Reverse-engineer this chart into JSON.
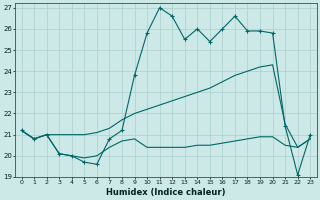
{
  "xlabel": "Humidex (Indice chaleur)",
  "xlim": [
    -0.5,
    23.5
  ],
  "ylim": [
    19,
    27.2
  ],
  "yticks": [
    19,
    20,
    21,
    22,
    23,
    24,
    25,
    26,
    27
  ],
  "xticks": [
    0,
    1,
    2,
    3,
    4,
    5,
    6,
    7,
    8,
    9,
    10,
    11,
    12,
    13,
    14,
    15,
    16,
    17,
    18,
    19,
    20,
    21,
    22,
    23
  ],
  "background_color": "#cce9e8",
  "grid_color": "#aacfce",
  "line_color": "#006666",
  "line1_x": [
    0,
    1,
    2,
    3,
    4,
    5,
    6,
    7,
    8,
    9,
    10,
    11,
    12,
    13,
    14,
    15,
    16,
    17,
    18,
    19,
    20,
    21,
    22,
    23
  ],
  "line1_y": [
    21.2,
    20.8,
    21.0,
    20.1,
    20.0,
    19.7,
    19.6,
    20.8,
    21.2,
    23.8,
    25.8,
    27.0,
    26.6,
    25.5,
    26.0,
    25.4,
    26.0,
    26.6,
    25.9,
    25.9,
    25.8,
    21.4,
    19.1,
    21.0
  ],
  "line2_x": [
    0,
    1,
    2,
    3,
    4,
    5,
    6,
    7,
    8,
    9,
    10,
    11,
    12,
    13,
    14,
    15,
    16,
    17,
    18,
    19,
    20,
    21,
    22,
    23
  ],
  "line2_y": [
    21.2,
    20.8,
    21.0,
    21.0,
    21.0,
    21.0,
    21.1,
    21.3,
    21.7,
    22.0,
    22.2,
    22.4,
    22.6,
    22.8,
    23.0,
    23.2,
    23.5,
    23.8,
    24.0,
    24.2,
    24.3,
    21.5,
    20.4,
    20.8
  ],
  "line3_x": [
    0,
    1,
    2,
    3,
    4,
    5,
    6,
    7,
    8,
    9,
    10,
    11,
    12,
    13,
    14,
    15,
    16,
    17,
    18,
    19,
    20,
    21,
    22,
    23
  ],
  "line3_y": [
    21.2,
    20.8,
    21.0,
    20.1,
    20.0,
    19.9,
    20.0,
    20.4,
    20.7,
    20.8,
    20.4,
    20.4,
    20.4,
    20.4,
    20.5,
    20.5,
    20.6,
    20.7,
    20.8,
    20.9,
    20.9,
    20.5,
    20.4,
    20.8
  ]
}
